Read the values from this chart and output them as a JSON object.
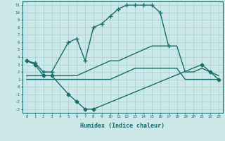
{
  "xlabel": "Humidex (Indice chaleur)",
  "background_color": "#cce8e8",
  "grid_color": "#aad4d4",
  "line_color": "#1a6b6b",
  "xlim": [
    -0.5,
    23.5
  ],
  "ylim": [
    -3.5,
    11.5
  ],
  "xticks": [
    0,
    1,
    2,
    3,
    4,
    5,
    6,
    7,
    8,
    9,
    10,
    11,
    12,
    13,
    14,
    15,
    16,
    17,
    18,
    19,
    20,
    21,
    22,
    23
  ],
  "yticks": [
    -3,
    -2,
    -1,
    0,
    1,
    2,
    3,
    4,
    5,
    6,
    7,
    8,
    9,
    10,
    11
  ],
  "series": [
    {
      "x": [
        0,
        1,
        2,
        3,
        5,
        6,
        7,
        8,
        21,
        22,
        23
      ],
      "y": [
        3.5,
        3.0,
        1.5,
        1.5,
        -1.0,
        -2.0,
        -3.0,
        -3.0,
        3.0,
        2.0,
        1.0
      ],
      "marker": "D",
      "markersize": 2.5,
      "linewidth": 1.0
    },
    {
      "x": [
        0,
        1,
        2,
        3,
        5,
        6,
        7,
        8,
        9,
        10,
        11,
        12,
        13,
        14,
        15,
        16,
        17
      ],
      "y": [
        3.5,
        3.2,
        2.0,
        2.0,
        6.0,
        6.5,
        3.5,
        8.0,
        8.5,
        9.5,
        10.5,
        11.0,
        11.0,
        11.0,
        11.0,
        10.0,
        5.5
      ],
      "marker": "+",
      "markersize": 4,
      "linewidth": 1.0
    },
    {
      "x": [
        0,
        1,
        2,
        3,
        4,
        5,
        6,
        7,
        8,
        9,
        10,
        11,
        12,
        13,
        14,
        15,
        16,
        17,
        18,
        19,
        20,
        21,
        22,
        23
      ],
      "y": [
        1.5,
        1.5,
        1.5,
        1.5,
        1.5,
        1.5,
        1.5,
        2.0,
        2.5,
        3.0,
        3.5,
        3.5,
        4.0,
        4.5,
        5.0,
        5.5,
        5.5,
        5.5,
        5.5,
        2.0,
        2.0,
        2.5,
        2.0,
        1.5
      ],
      "marker": null,
      "markersize": 0,
      "linewidth": 1.0
    },
    {
      "x": [
        0,
        1,
        2,
        3,
        4,
        5,
        6,
        7,
        8,
        9,
        10,
        11,
        12,
        13,
        14,
        15,
        16,
        17,
        18,
        19,
        20,
        21,
        22,
        23
      ],
      "y": [
        1.0,
        1.0,
        1.0,
        1.0,
        1.0,
        1.0,
        1.0,
        1.0,
        1.0,
        1.0,
        1.0,
        1.5,
        2.0,
        2.5,
        2.5,
        2.5,
        2.5,
        2.5,
        2.5,
        1.0,
        1.0,
        1.0,
        1.0,
        1.0
      ],
      "marker": null,
      "markersize": 0,
      "linewidth": 1.0
    }
  ]
}
